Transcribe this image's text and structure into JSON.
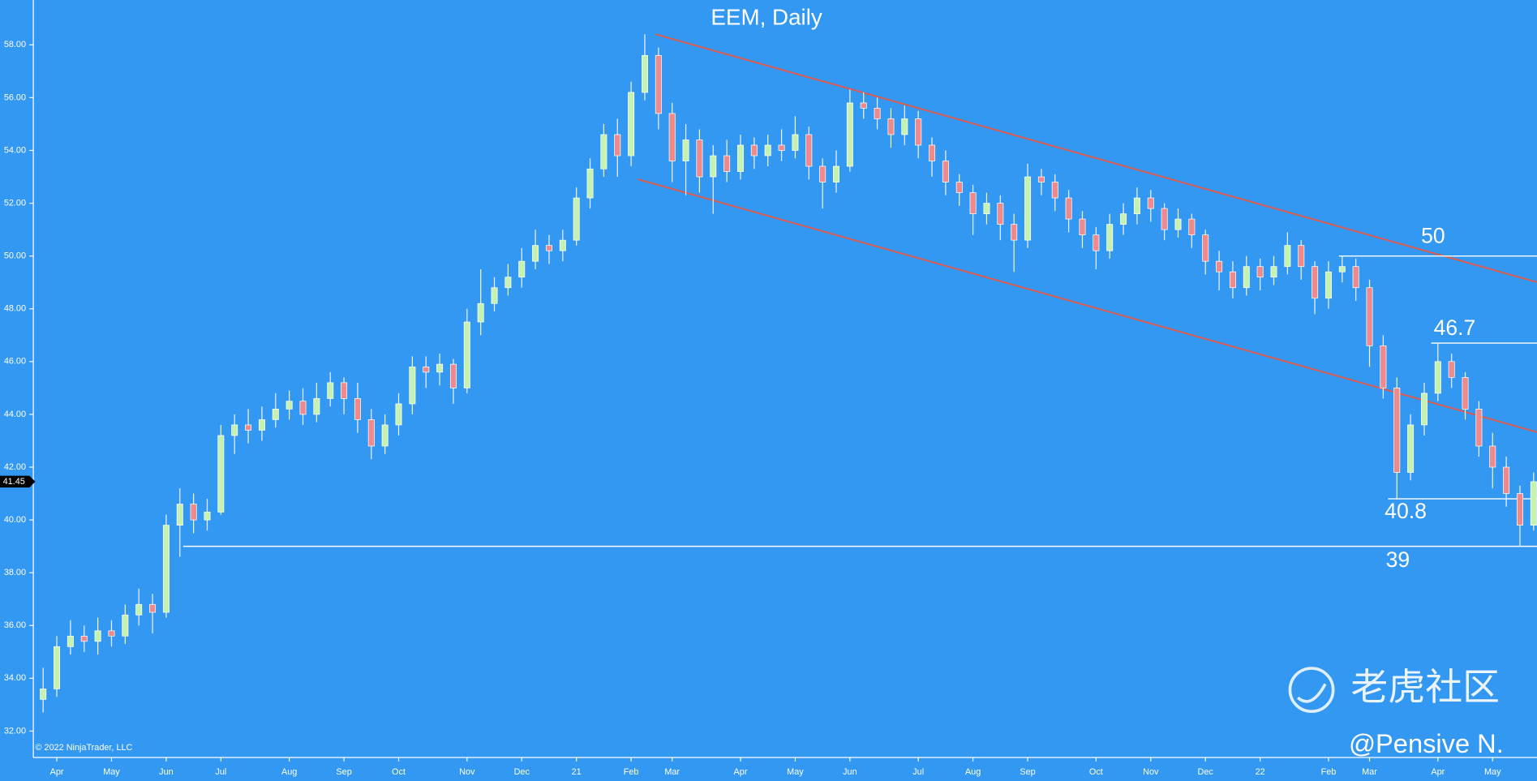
{
  "chart_data": {
    "type": "candlestick",
    "title": "EEM, Daily",
    "copyright": "© 2022 NinjaTrader, LLC",
    "watermark": "老虎社区",
    "author": "@Pensive N.",
    "up_color": "#c6f2b0",
    "down_color": "#f08a8a",
    "channel_color": "#e0584a",
    "grid": false,
    "categories": [
      null,
      "Apr",
      null,
      null,
      null,
      "May",
      null,
      null,
      null,
      "Jun",
      null,
      null,
      null,
      "Jul",
      null,
      null,
      null,
      null,
      "Aug",
      null,
      null,
      null,
      "Sep",
      null,
      null,
      null,
      "Oct",
      null,
      null,
      null,
      null,
      "Nov",
      null,
      null,
      null,
      "Dec",
      null,
      null,
      null,
      "21",
      null,
      null,
      null,
      "Feb",
      null,
      null,
      "Mar",
      null,
      null,
      null,
      null,
      "Apr",
      null,
      null,
      null,
      "May",
      null,
      null,
      null,
      "Jun",
      null,
      null,
      null,
      null,
      "Jul",
      null,
      null,
      null,
      "Aug",
      null,
      null,
      null,
      "Sep",
      null,
      null,
      null,
      null,
      "Oct",
      null,
      null,
      null,
      "Nov",
      null,
      null,
      null,
      "Dec",
      null,
      null,
      null,
      "22",
      null,
      null,
      null,
      null,
      "Feb",
      null,
      null,
      "Mar",
      null,
      null,
      null,
      null,
      "Apr",
      null,
      null,
      null,
      "May",
      null,
      null,
      null
    ],
    "open": [
      33.2,
      33.6,
      35.2,
      35.6,
      35.4,
      35.8,
      35.6,
      36.4,
      36.8,
      36.5,
      39.8,
      40.6,
      40.0,
      40.3,
      43.2,
      43.6,
      43.4,
      43.8,
      44.2,
      44.5,
      44.0,
      44.6,
      45.2,
      44.6,
      43.8,
      42.8,
      43.6,
      44.4,
      45.8,
      45.6,
      45.9,
      45.0,
      47.5,
      48.2,
      48.8,
      49.2,
      49.8,
      50.4,
      50.2,
      50.6,
      52.2,
      53.3,
      54.6,
      53.8,
      56.2,
      57.6,
      55.4,
      53.6,
      54.4,
      53.0,
      53.8,
      53.2,
      54.2,
      53.8,
      54.2,
      54.0,
      54.6,
      53.4,
      52.8,
      53.4,
      55.8,
      55.6,
      55.2,
      54.6,
      55.2,
      54.2,
      53.6,
      52.8,
      52.4,
      51.6,
      52.0,
      51.2,
      50.6,
      53.0,
      52.8,
      52.2,
      51.4,
      50.8,
      50.2,
      51.2,
      51.6,
      52.2,
      51.8,
      51.0,
      51.4,
      50.8,
      49.8,
      49.4,
      48.8,
      49.6,
      49.2,
      49.6,
      50.4,
      49.6,
      48.4,
      49.4,
      49.6,
      48.8,
      46.6,
      45.0,
      41.8,
      43.6,
      44.8,
      46.0,
      45.4,
      44.2,
      42.8,
      42.0,
      41.0,
      39.8
    ],
    "high": [
      34.4,
      35.6,
      36.2,
      36.0,
      36.3,
      36.2,
      36.8,
      37.4,
      37.2,
      40.2,
      41.2,
      41.0,
      40.8,
      43.6,
      44.0,
      44.2,
      44.3,
      44.8,
      44.9,
      45.0,
      45.2,
      45.6,
      45.4,
      45.2,
      44.2,
      44.0,
      44.8,
      46.2,
      46.2,
      46.3,
      46.1,
      48.0,
      49.5,
      49.2,
      49.7,
      50.3,
      51.0,
      50.8,
      51.0,
      52.6,
      53.7,
      55.0,
      55.2,
      56.6,
      58.4,
      57.9,
      55.8,
      55.0,
      54.8,
      54.2,
      54.4,
      54.6,
      54.5,
      54.6,
      54.8,
      55.3,
      54.9,
      53.7,
      54.0,
      56.3,
      56.2,
      56.0,
      55.6,
      55.7,
      55.5,
      54.5,
      54.0,
      53.1,
      52.7,
      52.4,
      52.3,
      51.6,
      53.5,
      53.3,
      53.1,
      52.5,
      51.7,
      51.1,
      51.6,
      52.0,
      52.6,
      52.5,
      52.0,
      51.8,
      51.6,
      51.0,
      50.2,
      49.8,
      50.0,
      49.9,
      50.0,
      50.9,
      50.6,
      49.8,
      49.8,
      50.0,
      49.9,
      49.1,
      47.0,
      45.4,
      44.0,
      45.2,
      46.7,
      46.3,
      45.6,
      44.5,
      43.3,
      42.4,
      41.3,
      41.8
    ],
    "low": [
      32.7,
      33.3,
      34.9,
      35.0,
      34.9,
      35.2,
      35.3,
      36.0,
      35.7,
      36.3,
      38.6,
      39.5,
      39.6,
      40.2,
      42.5,
      42.9,
      43.0,
      43.5,
      43.8,
      43.6,
      43.7,
      44.3,
      44.0,
      43.3,
      42.3,
      42.5,
      43.2,
      44.0,
      45.0,
      45.1,
      44.4,
      44.8,
      47.0,
      47.9,
      48.5,
      48.8,
      49.5,
      49.7,
      49.8,
      50.4,
      51.8,
      53.0,
      53.0,
      53.4,
      55.9,
      54.8,
      52.8,
      52.3,
      52.4,
      51.6,
      52.8,
      52.9,
      53.3,
      53.4,
      53.6,
      53.7,
      52.9,
      51.8,
      52.4,
      53.2,
      55.2,
      54.8,
      54.1,
      54.2,
      53.7,
      53.0,
      52.3,
      51.9,
      50.8,
      51.2,
      50.6,
      49.4,
      50.3,
      52.3,
      51.7,
      50.9,
      50.3,
      49.5,
      49.9,
      50.8,
      51.2,
      51.3,
      50.6,
      50.7,
      50.3,
      49.3,
      48.7,
      48.4,
      48.5,
      48.7,
      48.9,
      49.3,
      49.1,
      47.8,
      48.0,
      49.0,
      48.3,
      45.8,
      44.6,
      40.8,
      41.5,
      43.2,
      44.5,
      45.0,
      43.8,
      42.4,
      41.2,
      40.5,
      39.0,
      39.6
    ],
    "close": [
      33.6,
      35.2,
      35.6,
      35.4,
      35.8,
      35.6,
      36.4,
      36.8,
      36.5,
      39.8,
      40.6,
      40.0,
      40.3,
      43.2,
      43.6,
      43.4,
      43.8,
      44.2,
      44.5,
      44.0,
      44.6,
      45.2,
      44.6,
      43.8,
      42.8,
      43.6,
      44.4,
      45.8,
      45.6,
      45.9,
      45.0,
      47.5,
      48.2,
      48.8,
      49.2,
      49.8,
      50.4,
      50.2,
      50.6,
      52.2,
      53.3,
      54.6,
      53.8,
      56.2,
      57.6,
      55.4,
      53.6,
      54.4,
      53.0,
      53.8,
      53.2,
      54.2,
      53.8,
      54.2,
      54.0,
      54.6,
      53.4,
      52.8,
      53.4,
      55.8,
      55.6,
      55.2,
      54.6,
      55.2,
      54.2,
      53.6,
      52.8,
      52.4,
      51.6,
      52.0,
      51.2,
      50.6,
      53.0,
      52.8,
      52.2,
      51.4,
      50.8,
      50.2,
      51.2,
      51.6,
      52.2,
      51.8,
      51.0,
      51.4,
      50.8,
      49.8,
      49.4,
      48.8,
      49.6,
      49.2,
      49.6,
      50.4,
      49.6,
      48.4,
      49.4,
      49.6,
      48.8,
      46.6,
      45.0,
      41.8,
      43.6,
      44.8,
      46.0,
      45.4,
      44.2,
      42.8,
      42.0,
      41.0,
      39.8,
      41.45
    ],
    "levels": [
      50,
      46.7,
      40.8,
      39
    ],
    "ylim": [
      31,
      59.7
    ],
    "yticks": [
      {
        "value": 32,
        "label": "32.00"
      },
      {
        "value": 34,
        "label": "34.00"
      },
      {
        "value": 36,
        "label": "36.00"
      },
      {
        "value": 38,
        "label": "38.00"
      },
      {
        "value": 40,
        "label": "40.00"
      },
      {
        "value": 42,
        "label": "42.00"
      },
      {
        "value": 44,
        "label": "44.00"
      },
      {
        "value": 46,
        "label": "46.00"
      },
      {
        "value": 48,
        "label": "48.00"
      },
      {
        "value": 50,
        "label": "50.00"
      },
      {
        "value": 52,
        "label": "52.00"
      },
      {
        "value": 54,
        "label": "54.00"
      },
      {
        "value": 56,
        "label": "56.00"
      },
      {
        "value": 58,
        "label": "58.00"
      }
    ]
  }
}
